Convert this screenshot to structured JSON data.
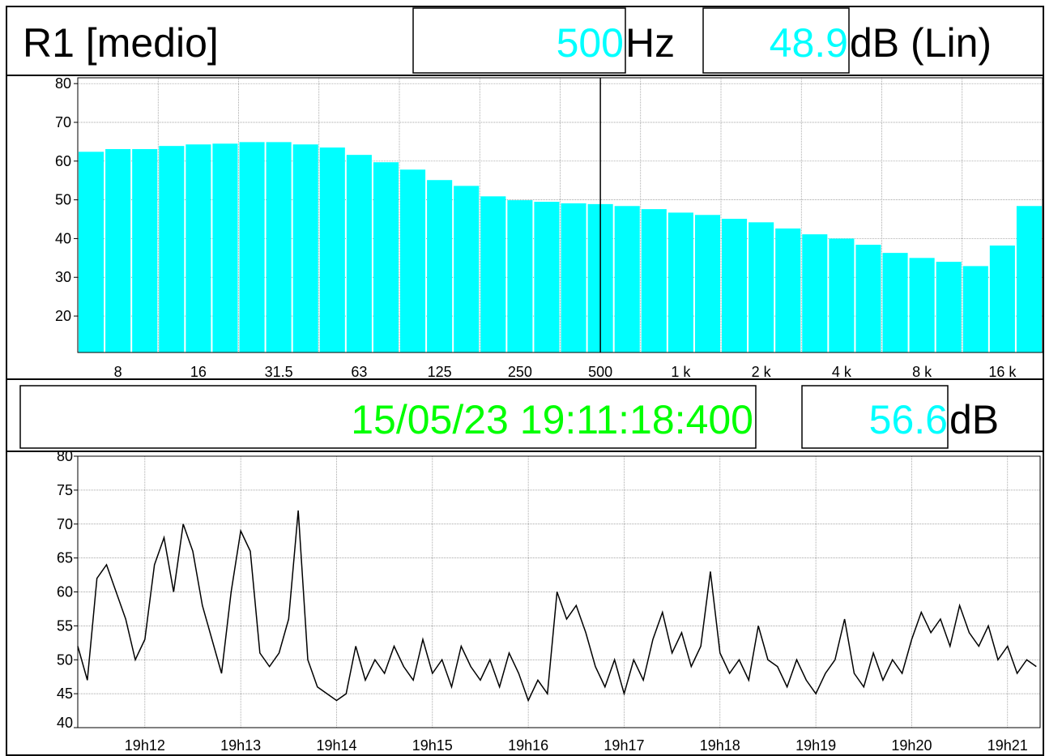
{
  "header": {
    "channel": "R1 [medio]",
    "frequency": "500",
    "frequency_unit": "Hz",
    "level": "48.9",
    "level_unit": "dB (Lin)"
  },
  "cursor": {
    "timestamp": "15/05/23 19:11:18:400",
    "level": "56.6",
    "level_unit": "dB"
  },
  "chart_data": [
    {
      "type": "bar",
      "color": "#00ffff",
      "grid": true,
      "categories": [
        null,
        "8",
        null,
        null,
        "16",
        null,
        null,
        "31.5",
        null,
        null,
        "63",
        null,
        null,
        "125",
        null,
        null,
        "250",
        null,
        null,
        "500",
        null,
        null,
        "1 k",
        null,
        null,
        "2 k",
        null,
        null,
        "4 k",
        null,
        null,
        "8 k",
        null,
        null,
        "16 k",
        null
      ],
      "values": [
        62.4,
        63.1,
        63.1,
        63.9,
        64.3,
        64.5,
        64.9,
        64.9,
        64.3,
        63.5,
        61.6,
        59.7,
        57.8,
        55.1,
        53.6,
        50.9,
        49.9,
        49.5,
        49.1,
        48.9,
        48.4,
        47.6,
        46.7,
        46.1,
        45.1,
        44.2,
        42.6,
        41.1,
        40.0,
        38.4,
        36.3,
        35.0,
        34.0,
        32.9,
        38.2,
        48.4
      ],
      "ylim": [
        10.6,
        81.5
      ],
      "yticks": [
        20,
        30,
        40,
        50,
        60,
        70,
        80
      ]
    },
    {
      "type": "line",
      "color": "#000000",
      "grid": true,
      "x": [
        1151.3,
        1151.4,
        1151.5,
        1151.6,
        1151.7,
        1151.8,
        1151.9,
        1152.0,
        1152.1,
        1152.2,
        1152.3,
        1152.4,
        1152.5,
        1152.6,
        1152.7,
        1152.8,
        1152.9,
        1153.0,
        1153.1,
        1153.2,
        1153.3,
        1153.4,
        1153.5,
        1153.6,
        1153.7,
        1153.8,
        1153.9,
        1154.0,
        1154.1,
        1154.2,
        1154.3,
        1154.4,
        1154.5,
        1154.6,
        1154.7,
        1154.8,
        1154.9,
        1155.0,
        1155.1,
        1155.2,
        1155.3,
        1155.4,
        1155.5,
        1155.6,
        1155.7,
        1155.8,
        1155.9,
        1156.0,
        1156.1,
        1156.2,
        1156.3,
        1156.4,
        1156.5,
        1156.6,
        1156.7,
        1156.8,
        1156.9,
        1157.0,
        1157.1,
        1157.2,
        1157.3,
        1157.4,
        1157.5,
        1157.6,
        1157.7,
        1157.8,
        1157.9,
        1158.0,
        1158.1,
        1158.2,
        1158.3,
        1158.4,
        1158.5,
        1158.6,
        1158.7,
        1158.8,
        1158.9,
        1159.0,
        1159.1,
        1159.2,
        1159.3,
        1159.4,
        1159.5,
        1159.6,
        1159.7,
        1159.8,
        1159.9,
        1160.0,
        1160.1,
        1160.2,
        1160.3,
        1160.4,
        1160.5,
        1160.6,
        1160.7,
        1160.8,
        1160.9,
        1161.0,
        1161.1,
        1161.2,
        1161.3
      ],
      "values": [
        52,
        47,
        62,
        64,
        60,
        56,
        50,
        53,
        64,
        68,
        60,
        70,
        66,
        58,
        53,
        48,
        60,
        69,
        66,
        51,
        49,
        51,
        56,
        72,
        50,
        46,
        45,
        44,
        45,
        52,
        47,
        50,
        48,
        52,
        49,
        47,
        53,
        48,
        50,
        46,
        52,
        49,
        47,
        50,
        46,
        51,
        48,
        44,
        47,
        45,
        60,
        56,
        58,
        54,
        49,
        46,
        50,
        45,
        50,
        47,
        53,
        57,
        51,
        54,
        49,
        52,
        63,
        51,
        48,
        50,
        47,
        55,
        50,
        49,
        46,
        50,
        47,
        45,
        48,
        50,
        56,
        48,
        46,
        51,
        47,
        50,
        48,
        53,
        57,
        54,
        56,
        52,
        58,
        54,
        52,
        55,
        50,
        52,
        48,
        50,
        49
      ],
      "xlim": [
        1151.3,
        1161.34
      ],
      "ylim": [
        40,
        80
      ],
      "xticks": [
        {
          "value": 1152,
          "label": "19h12"
        },
        {
          "value": 1153,
          "label": "19h13"
        },
        {
          "value": 1154,
          "label": "19h14"
        },
        {
          "value": 1155,
          "label": "19h15"
        },
        {
          "value": 1156,
          "label": "19h16"
        },
        {
          "value": 1157,
          "label": "19h17"
        },
        {
          "value": 1158,
          "label": "19h18"
        },
        {
          "value": 1159,
          "label": "19h19"
        },
        {
          "value": 1160,
          "label": "19h20"
        },
        {
          "value": 1161,
          "label": "19h21"
        }
      ],
      "yticks": [
        40,
        45,
        50,
        55,
        60,
        65,
        70,
        75,
        80
      ]
    }
  ]
}
